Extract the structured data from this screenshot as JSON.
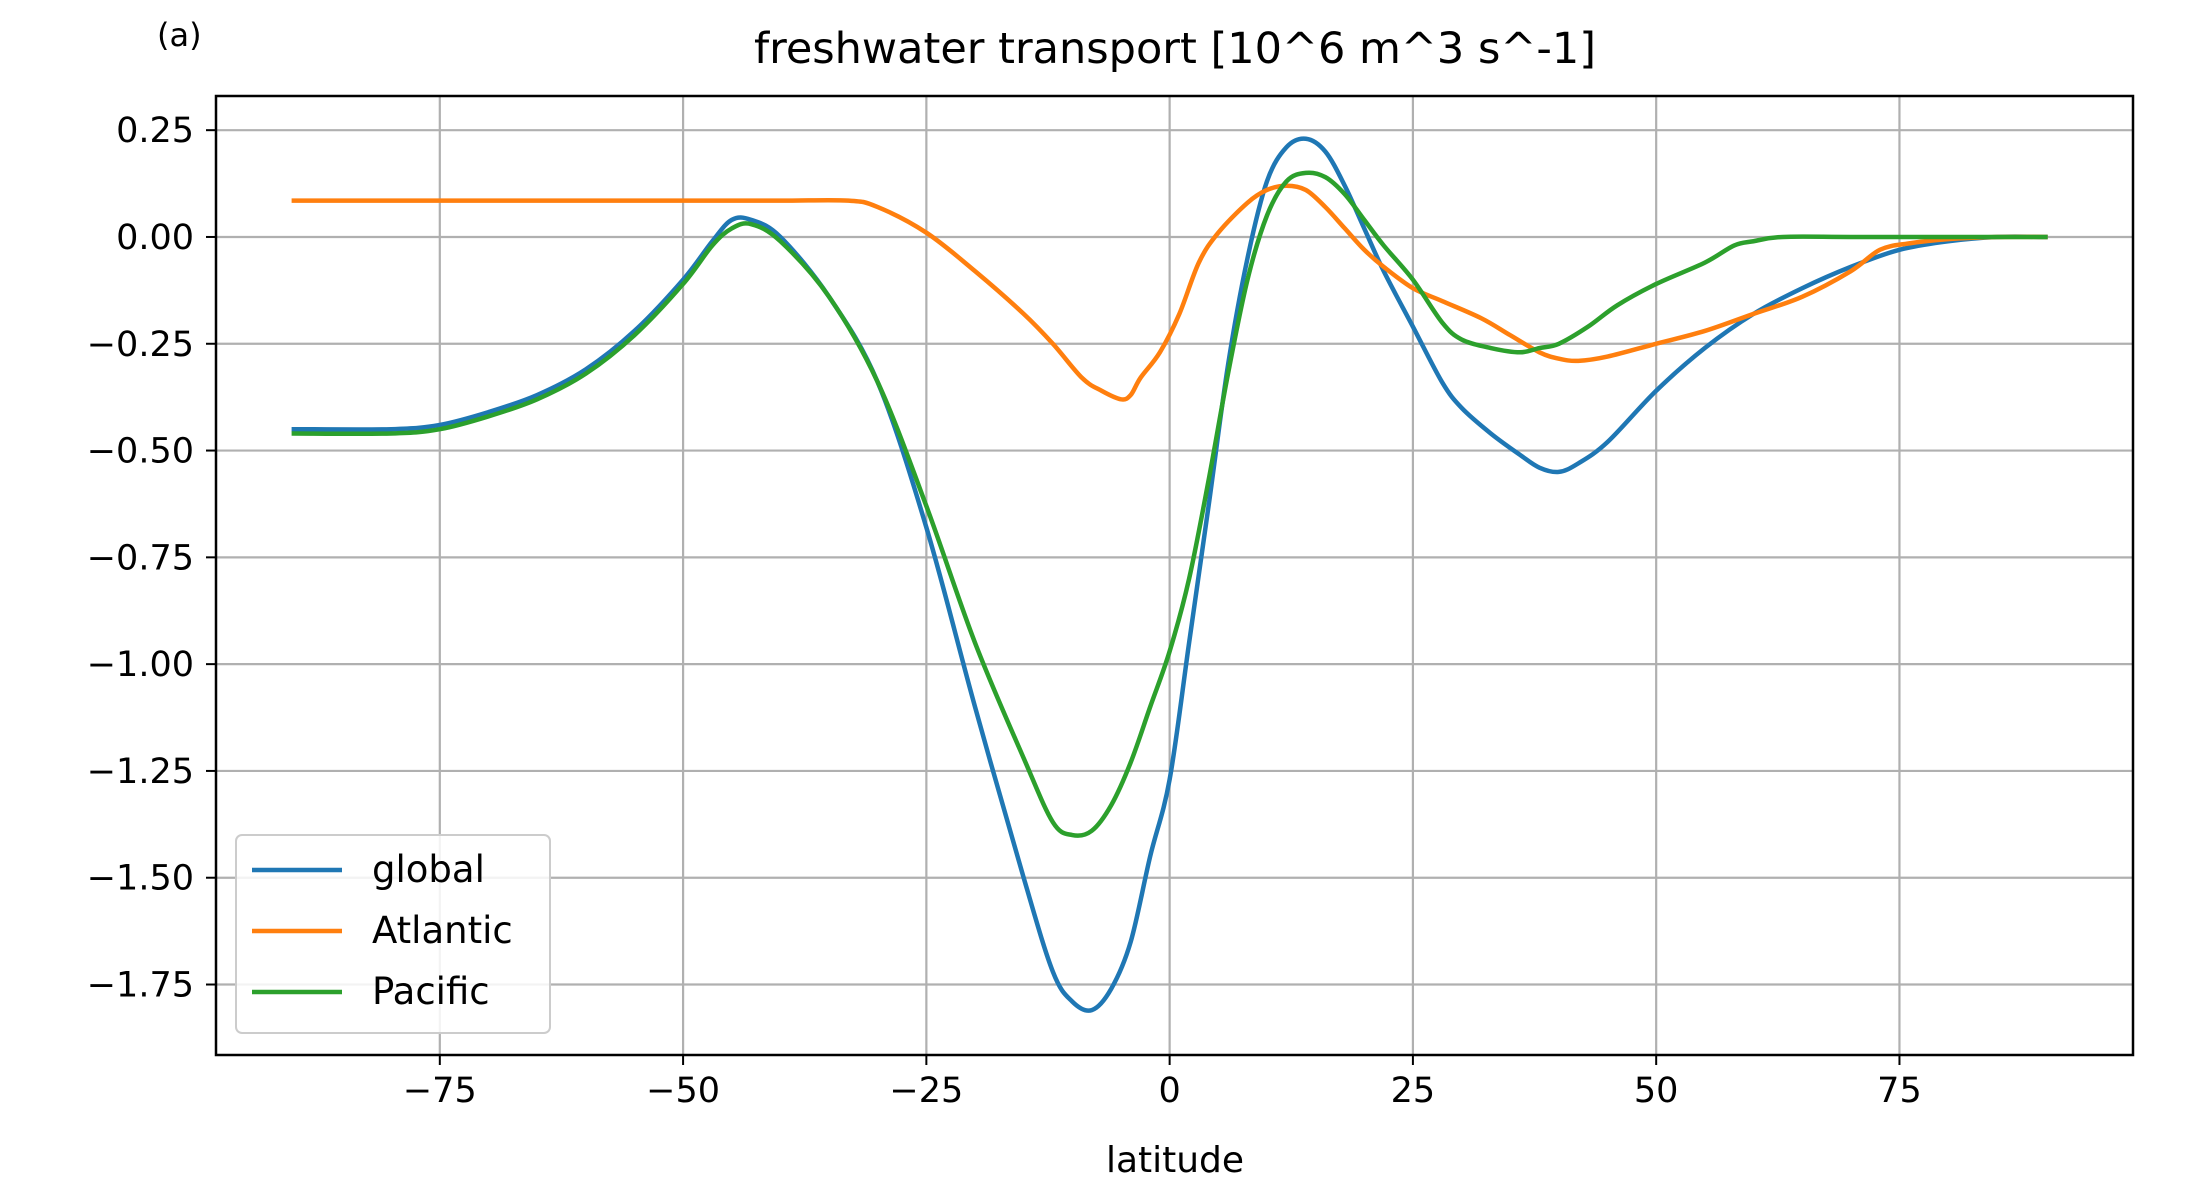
{
  "panel_label": "(a)",
  "chart_data": {
    "type": "line",
    "title": "freshwater transport [10^6 m^3 s^-1]",
    "xlabel": "latitude",
    "ylabel": "",
    "xlim": [
      -98,
      99
    ],
    "ylim": [
      -1.915,
      0.33
    ],
    "xticks": [
      -75,
      -50,
      -25,
      0,
      25,
      50,
      75
    ],
    "xtick_labels": [
      "−75",
      "−50",
      "−25",
      "0",
      "25",
      "50",
      "75"
    ],
    "yticks": [
      0.25,
      0.0,
      -0.25,
      -0.5,
      -0.75,
      -1.0,
      -1.25,
      -1.5,
      -1.75
    ],
    "ytick_labels": [
      "0.25",
      "0.00",
      "−0.25",
      "−0.50",
      "−0.75",
      "−1.00",
      "−1.25",
      "−1.50",
      "−1.75"
    ],
    "grid": true,
    "legend_position": "lower-left",
    "series": [
      {
        "name": "global",
        "color": "#1f77b4",
        "points": [
          [
            -90,
            -0.45
          ],
          [
            -80,
            -0.45
          ],
          [
            -75,
            -0.44
          ],
          [
            -70,
            -0.41
          ],
          [
            -65,
            -0.37
          ],
          [
            -60,
            -0.31
          ],
          [
            -55,
            -0.22
          ],
          [
            -50,
            -0.1
          ],
          [
            -47,
            -0.01
          ],
          [
            -45,
            0.04
          ],
          [
            -43,
            0.04
          ],
          [
            -40,
            0.0
          ],
          [
            -35,
            -0.14
          ],
          [
            -30,
            -0.34
          ],
          [
            -25,
            -0.68
          ],
          [
            -20,
            -1.1
          ],
          [
            -15,
            -1.5
          ],
          [
            -12,
            -1.72
          ],
          [
            -10,
            -1.79
          ],
          [
            -8,
            -1.81
          ],
          [
            -6,
            -1.76
          ],
          [
            -4,
            -1.65
          ],
          [
            -2,
            -1.45
          ],
          [
            0,
            -1.27
          ],
          [
            2,
            -0.95
          ],
          [
            4,
            -0.63
          ],
          [
            6,
            -0.3
          ],
          [
            8,
            -0.05
          ],
          [
            10,
            0.13
          ],
          [
            12,
            0.21
          ],
          [
            14,
            0.23
          ],
          [
            16,
            0.2
          ],
          [
            18,
            0.12
          ],
          [
            20,
            0.02
          ],
          [
            22,
            -0.08
          ],
          [
            25,
            -0.21
          ],
          [
            28,
            -0.34
          ],
          [
            30,
            -0.4
          ],
          [
            33,
            -0.46
          ],
          [
            36,
            -0.51
          ],
          [
            38,
            -0.54
          ],
          [
            40,
            -0.55
          ],
          [
            42,
            -0.53
          ],
          [
            45,
            -0.48
          ],
          [
            50,
            -0.36
          ],
          [
            55,
            -0.26
          ],
          [
            60,
            -0.18
          ],
          [
            65,
            -0.12
          ],
          [
            70,
            -0.07
          ],
          [
            75,
            -0.03
          ],
          [
            80,
            -0.01
          ],
          [
            85,
            0.0
          ],
          [
            90,
            0.0
          ]
        ]
      },
      {
        "name": "Atlantic",
        "color": "#ff7f0e",
        "points": [
          [
            -90,
            0.085
          ],
          [
            -80,
            0.085
          ],
          [
            -70,
            0.085
          ],
          [
            -60,
            0.085
          ],
          [
            -50,
            0.085
          ],
          [
            -40,
            0.085
          ],
          [
            -33,
            0.085
          ],
          [
            -30,
            0.07
          ],
          [
            -25,
            0.01
          ],
          [
            -20,
            -0.08
          ],
          [
            -15,
            -0.18
          ],
          [
            -12,
            -0.25
          ],
          [
            -9,
            -0.33
          ],
          [
            -7,
            -0.36
          ],
          [
            -5,
            -0.38
          ],
          [
            -4,
            -0.37
          ],
          [
            -3,
            -0.33
          ],
          [
            -1,
            -0.27
          ],
          [
            1,
            -0.18
          ],
          [
            3,
            -0.06
          ],
          [
            5,
            0.01
          ],
          [
            8,
            0.08
          ],
          [
            10,
            0.11
          ],
          [
            12,
            0.12
          ],
          [
            14,
            0.11
          ],
          [
            16,
            0.07
          ],
          [
            18,
            0.02
          ],
          [
            20,
            -0.03
          ],
          [
            22,
            -0.07
          ],
          [
            25,
            -0.12
          ],
          [
            28,
            -0.15
          ],
          [
            32,
            -0.19
          ],
          [
            35,
            -0.23
          ],
          [
            38,
            -0.27
          ],
          [
            40,
            -0.285
          ],
          [
            42,
            -0.29
          ],
          [
            45,
            -0.28
          ],
          [
            50,
            -0.25
          ],
          [
            55,
            -0.22
          ],
          [
            60,
            -0.18
          ],
          [
            65,
            -0.14
          ],
          [
            70,
            -0.08
          ],
          [
            73,
            -0.03
          ],
          [
            76,
            -0.015
          ],
          [
            80,
            -0.005
          ],
          [
            85,
            0.0
          ],
          [
            90,
            0.0
          ]
        ]
      },
      {
        "name": "Pacific",
        "color": "#2ca02c",
        "points": [
          [
            -90,
            -0.46
          ],
          [
            -80,
            -0.46
          ],
          [
            -75,
            -0.45
          ],
          [
            -70,
            -0.42
          ],
          [
            -65,
            -0.38
          ],
          [
            -60,
            -0.32
          ],
          [
            -55,
            -0.23
          ],
          [
            -50,
            -0.11
          ],
          [
            -47,
            -0.02
          ],
          [
            -45,
            0.02
          ],
          [
            -43,
            0.03
          ],
          [
            -40,
            -0.01
          ],
          [
            -35,
            -0.14
          ],
          [
            -30,
            -0.34
          ],
          [
            -25,
            -0.63
          ],
          [
            -20,
            -0.95
          ],
          [
            -15,
            -1.22
          ],
          [
            -12,
            -1.37
          ],
          [
            -10,
            -1.4
          ],
          [
            -8,
            -1.39
          ],
          [
            -6,
            -1.33
          ],
          [
            -4,
            -1.23
          ],
          [
            -2,
            -1.1
          ],
          [
            0,
            -0.97
          ],
          [
            2,
            -0.8
          ],
          [
            4,
            -0.57
          ],
          [
            6,
            -0.32
          ],
          [
            8,
            -0.1
          ],
          [
            10,
            0.05
          ],
          [
            12,
            0.13
          ],
          [
            14,
            0.15
          ],
          [
            16,
            0.14
          ],
          [
            18,
            0.1
          ],
          [
            20,
            0.04
          ],
          [
            22,
            -0.02
          ],
          [
            25,
            -0.1
          ],
          [
            28,
            -0.2
          ],
          [
            30,
            -0.24
          ],
          [
            33,
            -0.26
          ],
          [
            36,
            -0.27
          ],
          [
            38,
            -0.26
          ],
          [
            40,
            -0.25
          ],
          [
            43,
            -0.21
          ],
          [
            46,
            -0.16
          ],
          [
            50,
            -0.11
          ],
          [
            55,
            -0.06
          ],
          [
            58,
            -0.02
          ],
          [
            60,
            -0.01
          ],
          [
            63,
            0.0
          ],
          [
            70,
            0.0
          ],
          [
            80,
            0.0
          ],
          [
            90,
            0.0
          ]
        ]
      }
    ]
  }
}
